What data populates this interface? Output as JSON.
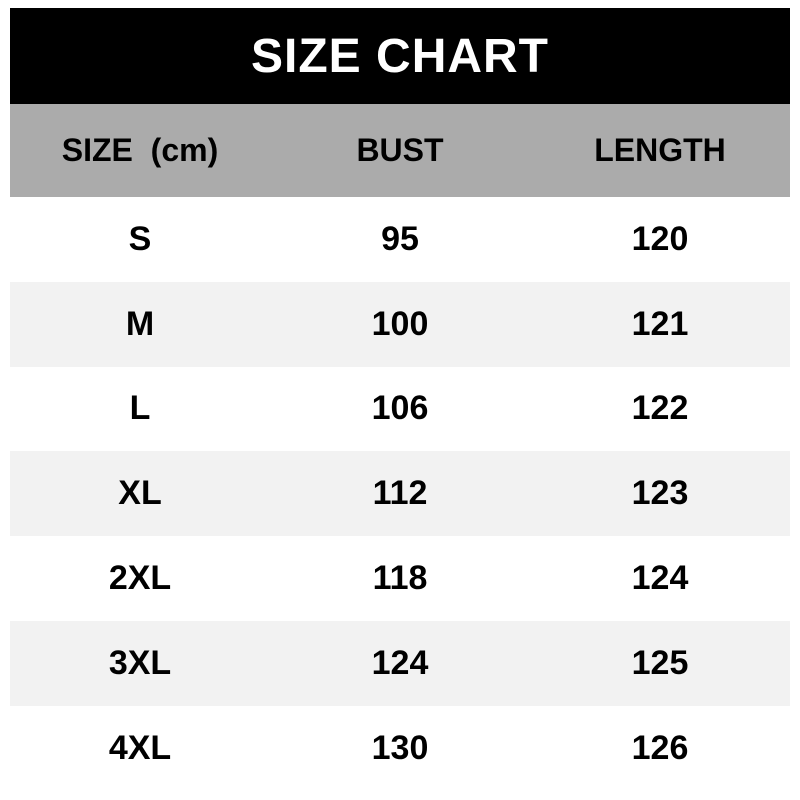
{
  "title": "SIZE CHART",
  "header": {
    "size_label": "SIZE  (cm)",
    "bust_label": "BUST",
    "length_label": "LENGTH"
  },
  "chart_data": {
    "type": "table",
    "title": "SIZE CHART",
    "unit": "cm",
    "columns": [
      "SIZE (cm)",
      "BUST",
      "LENGTH"
    ],
    "rows": [
      [
        "S",
        "95",
        "120"
      ],
      [
        "M",
        "100",
        "121"
      ],
      [
        "L",
        "106",
        "122"
      ],
      [
        "XL",
        "112",
        "123"
      ],
      [
        "2XL",
        "118",
        "124"
      ],
      [
        "3XL",
        "124",
        "125"
      ],
      [
        "4XL",
        "130",
        "126"
      ]
    ]
  },
  "colors": {
    "title_bar_bg": "#000000",
    "title_text": "#ffffff",
    "header_row_bg": "#ababab",
    "row_bg": "#ffffff",
    "row_alt_bg": "#f2f2f2",
    "cell_text": "#000000",
    "page_bg": "#ffffff"
  }
}
